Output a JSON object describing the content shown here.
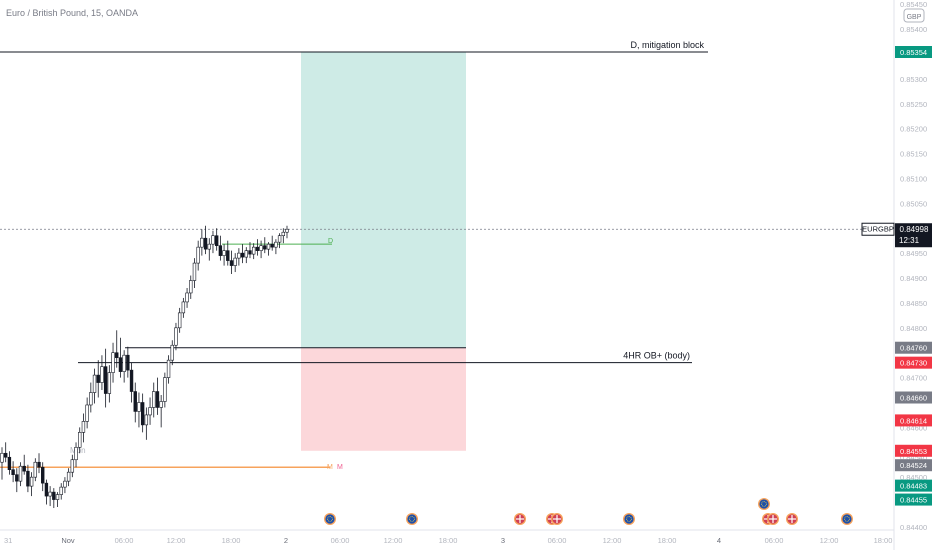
{
  "header": {
    "symbol_title": "Euro / British Pound, 15, OANDA",
    "currency_badge": "GBP"
  },
  "chart_data": {
    "type": "candlestick",
    "symbol": "EURGBP",
    "last_price": "0.84998",
    "countdown": "12:31",
    "y_ticks": [
      {
        "value": 0.8545,
        "label": "0.85450"
      },
      {
        "value": 0.854,
        "label": "0.85400"
      },
      {
        "value": 0.853,
        "label": "0.85300"
      },
      {
        "value": 0.8525,
        "label": "0.85250"
      },
      {
        "value": 0.852,
        "label": "0.85200"
      },
      {
        "value": 0.8515,
        "label": "0.85150"
      },
      {
        "value": 0.851,
        "label": "0.85100"
      },
      {
        "value": 0.8505,
        "label": "0.85050"
      },
      {
        "value": 0.8495,
        "label": "0.84950"
      },
      {
        "value": 0.849,
        "label": "0.84900"
      },
      {
        "value": 0.8485,
        "label": "0.84850"
      },
      {
        "value": 0.848,
        "label": "0.84800"
      },
      {
        "value": 0.847,
        "label": "0.84700"
      },
      {
        "value": 0.846,
        "label": "0.84600"
      },
      {
        "value": 0.8454,
        "label": "0.84540"
      },
      {
        "value": 0.845,
        "label": "0.84500"
      },
      {
        "value": 0.844,
        "label": "0.84400"
      }
    ],
    "y_markers": [
      {
        "value": 0.85354,
        "label": "0.85354",
        "color": "#089981"
      },
      {
        "value": 0.8476,
        "label": "0.84760",
        "color": "#787b86"
      },
      {
        "value": 0.8473,
        "label": "0.84730",
        "color": "#f23645"
      },
      {
        "value": 0.8466,
        "label": "0.84660",
        "color": "#787b86"
      },
      {
        "value": 0.84614,
        "label": "0.84614",
        "color": "#f23645"
      },
      {
        "value": 0.84553,
        "label": "0.84553",
        "color": "#f23645"
      },
      {
        "value": 0.84524,
        "label": "0.84524",
        "color": "#787b86"
      },
      {
        "value": 0.84483,
        "label": "0.84483",
        "color": "#089981"
      },
      {
        "value": 0.84455,
        "label": "0.84455",
        "color": "#089981"
      }
    ],
    "x_ticks": [
      {
        "value": "31",
        "label": "31"
      },
      {
        "value": "Nov",
        "label": "Nov"
      },
      {
        "value": "06:00",
        "label": "06:00"
      },
      {
        "value": "12:00",
        "label": "12:00"
      },
      {
        "value": "18:00",
        "label": "18:00"
      },
      {
        "value": "2",
        "label": "2"
      },
      {
        "value": "06:00 (2)",
        "label": "06:00"
      },
      {
        "value": "12:00 (2)",
        "label": "12:00"
      },
      {
        "value": "18:00 (2)",
        "label": "18:00"
      },
      {
        "value": "3",
        "label": "3"
      },
      {
        "value": "06:00 (3)",
        "label": "06:00"
      },
      {
        "value": "12:00 (3)",
        "label": "12:00"
      },
      {
        "value": "18:00 (3)",
        "label": "18:00"
      },
      {
        "value": "4",
        "label": "4"
      },
      {
        "value": "06:00 (4)",
        "label": "06:00"
      },
      {
        "value": "12:00 (4)",
        "label": "12:00"
      },
      {
        "value": "18:00 (4)",
        "label": "18:00"
      }
    ],
    "annotations": {
      "mitigation_label": "D, mitigation block",
      "mitigation_level": 0.85354,
      "ob_label": "4HR OB+ (body)",
      "ob_top": 0.8476,
      "ob_bottom": 0.8473,
      "mon_label": "Mon",
      "d_marker_label": "D",
      "orange_level_markers": [
        "M",
        "M"
      ],
      "orange_level": 0.8452,
      "green_level": 0.84968,
      "long_position": {
        "entry": 0.8476,
        "target": 0.85354,
        "stop": 0.84553
      }
    },
    "candles_ohlc": [
      [
        0.8453,
        0.8456,
        0.84495,
        0.84548
      ],
      [
        0.84548,
        0.8457,
        0.8453,
        0.8454
      ],
      [
        0.8454,
        0.84552,
        0.84505,
        0.84515
      ],
      [
        0.84515,
        0.84532,
        0.8449,
        0.84505
      ],
      [
        0.84505,
        0.84518,
        0.8447,
        0.84492
      ],
      [
        0.84492,
        0.8453,
        0.84482,
        0.84522
      ],
      [
        0.84522,
        0.84545,
        0.84505,
        0.84512
      ],
      [
        0.84512,
        0.84525,
        0.8447,
        0.84482
      ],
      [
        0.84482,
        0.8451,
        0.84462,
        0.845
      ],
      [
        0.845,
        0.84538,
        0.84492,
        0.8453
      ],
      [
        0.8453,
        0.84548,
        0.84508,
        0.8452
      ],
      [
        0.8452,
        0.8453,
        0.84472,
        0.84488
      ],
      [
        0.84488,
        0.84495,
        0.84445,
        0.84462
      ],
      [
        0.84462,
        0.84482,
        0.84442,
        0.8447
      ],
      [
        0.8447,
        0.84478,
        0.84438,
        0.84455
      ],
      [
        0.84455,
        0.8447,
        0.8444,
        0.84465
      ],
      [
        0.84465,
        0.84488,
        0.84455,
        0.8448
      ],
      [
        0.8448,
        0.845,
        0.84468,
        0.84492
      ],
      [
        0.84492,
        0.84518,
        0.84482,
        0.8451
      ],
      [
        0.8451,
        0.84545,
        0.845,
        0.84535
      ],
      [
        0.84535,
        0.8457,
        0.8452,
        0.8456
      ],
      [
        0.8456,
        0.846,
        0.84548,
        0.8459
      ],
      [
        0.8459,
        0.84628,
        0.8457,
        0.84612
      ],
      [
        0.84612,
        0.8466,
        0.84598,
        0.84645
      ],
      [
        0.84645,
        0.8469,
        0.8463,
        0.8467
      ],
      [
        0.8467,
        0.84718,
        0.84648,
        0.84705
      ],
      [
        0.84705,
        0.84735,
        0.8466,
        0.8469
      ],
      [
        0.8469,
        0.84745,
        0.84675,
        0.84722
      ],
      [
        0.84722,
        0.84758,
        0.8464,
        0.84668
      ],
      [
        0.84668,
        0.84725,
        0.8465,
        0.8471
      ],
      [
        0.8471,
        0.8477,
        0.8469,
        0.8475
      ],
      [
        0.8475,
        0.84795,
        0.8472,
        0.8474
      ],
      [
        0.8474,
        0.8478,
        0.847,
        0.84712
      ],
      [
        0.84712,
        0.84755,
        0.8469,
        0.84745
      ],
      [
        0.84745,
        0.84762,
        0.847,
        0.84715
      ],
      [
        0.84715,
        0.8473,
        0.8465,
        0.84672
      ],
      [
        0.84672,
        0.8469,
        0.8461,
        0.84632
      ],
      [
        0.84632,
        0.8467,
        0.846,
        0.8465
      ],
      [
        0.8465,
        0.84668,
        0.8459,
        0.84605
      ],
      [
        0.84605,
        0.8464,
        0.84575,
        0.84625
      ],
      [
        0.84625,
        0.8466,
        0.84605,
        0.8464
      ],
      [
        0.8464,
        0.8469,
        0.8462,
        0.84672
      ],
      [
        0.84672,
        0.847,
        0.84625,
        0.8464
      ],
      [
        0.8464,
        0.84665,
        0.846,
        0.84652
      ],
      [
        0.84652,
        0.8471,
        0.8464,
        0.847
      ],
      [
        0.847,
        0.84745,
        0.84688,
        0.84735
      ],
      [
        0.84735,
        0.84775,
        0.84725,
        0.84765
      ],
      [
        0.84765,
        0.8481,
        0.84755,
        0.848
      ],
      [
        0.848,
        0.8484,
        0.8479,
        0.8483
      ],
      [
        0.8483,
        0.8486,
        0.8482,
        0.84852
      ],
      [
        0.84852,
        0.8488,
        0.8484,
        0.8487
      ],
      [
        0.8487,
        0.84905,
        0.84858,
        0.84895
      ],
      [
        0.84895,
        0.8494,
        0.8488,
        0.8493
      ],
      [
        0.8493,
        0.84975,
        0.84915,
        0.84962
      ],
      [
        0.84962,
        0.84998,
        0.84945,
        0.8498
      ],
      [
        0.8498,
        0.85005,
        0.84948,
        0.84958
      ],
      [
        0.84958,
        0.8498,
        0.84935,
        0.84968
      ],
      [
        0.84968,
        0.84995,
        0.8495,
        0.84985
      ],
      [
        0.84985,
        0.85,
        0.84955,
        0.84965
      ],
      [
        0.84965,
        0.84985,
        0.84935,
        0.84945
      ],
      [
        0.84945,
        0.84968,
        0.84925,
        0.84955
      ],
      [
        0.84955,
        0.84975,
        0.84925,
        0.84935
      ],
      [
        0.84935,
        0.84955,
        0.84908,
        0.84925
      ],
      [
        0.84925,
        0.8495,
        0.84912,
        0.8494
      ],
      [
        0.8494,
        0.8496,
        0.84925,
        0.8495
      ],
      [
        0.8495,
        0.84968,
        0.8493,
        0.84942
      ],
      [
        0.84942,
        0.84962,
        0.8493,
        0.84955
      ],
      [
        0.84955,
        0.84972,
        0.8494,
        0.84948
      ],
      [
        0.84948,
        0.8497,
        0.84938,
        0.84962
      ],
      [
        0.84962,
        0.84978,
        0.84945,
        0.84955
      ],
      [
        0.84955,
        0.84975,
        0.8494,
        0.84965
      ],
      [
        0.84965,
        0.84982,
        0.8495,
        0.84958
      ],
      [
        0.84958,
        0.84972,
        0.84945,
        0.84968
      ],
      [
        0.84968,
        0.84985,
        0.84955,
        0.84962
      ],
      [
        0.84962,
        0.84978,
        0.84948,
        0.84972
      ],
      [
        0.84972,
        0.8499,
        0.8496,
        0.84985
      ],
      [
        0.84985,
        0.85,
        0.8497,
        0.84992
      ],
      [
        0.84992,
        0.85005,
        0.8498,
        0.84998
      ]
    ]
  }
}
